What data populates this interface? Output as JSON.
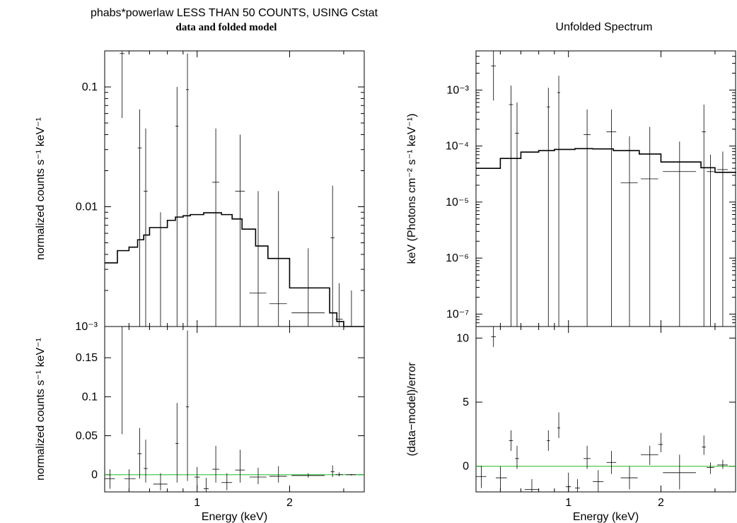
{
  "left_panel": {
    "title": "phabs*powerlaw LESS THAN 50 COUNTS, USING Cstat",
    "subtitle": "data and folded model"
  },
  "right_panel": {
    "title": "Unfolded Spectrum"
  },
  "colors": {
    "data": "#000000",
    "model": "#000000",
    "zero_line": "#22bb22"
  },
  "chart_data": [
    {
      "type": "scatter",
      "panel": "top-left",
      "xlabel": "",
      "ylabel": "normalized counts s⁻¹ keV⁻¹",
      "xscale": "log",
      "yscale": "log",
      "xlim": [
        0.5,
        3.5
      ],
      "ylim": [
        0.001,
        0.2
      ],
      "yticks": [
        {
          "v": 0.001,
          "label": "10⁻³"
        },
        {
          "v": 0.01,
          "label": "0.01"
        },
        {
          "v": 0.1,
          "label": "0.1"
        }
      ],
      "series": [
        {
          "role": "data",
          "points": [
            {
              "x": 0.52,
              "xlo": 0.5,
              "xhi": 0.54,
              "y": 0.001,
              "ylo": 0.001,
              "yhi": 0.001
            },
            {
              "x": 0.57,
              "xlo": 0.56,
              "xhi": 0.58,
              "y": 0.19,
              "ylo": 0.055,
              "yhi": 0.2
            },
            {
              "x": 0.65,
              "xlo": 0.64,
              "xhi": 0.66,
              "y": 0.031,
              "ylo": 0.001,
              "yhi": 0.065
            },
            {
              "x": 0.68,
              "xlo": 0.67,
              "xhi": 0.69,
              "y": 0.0135,
              "ylo": 0.001,
              "yhi": 0.045
            },
            {
              "x": 0.76,
              "xlo": 0.72,
              "xhi": 0.8,
              "y": 0.001,
              "ylo": 0.001,
              "yhi": 0.009
            },
            {
              "x": 0.86,
              "xlo": 0.85,
              "xhi": 0.87,
              "y": 0.047,
              "ylo": 0.001,
              "yhi": 0.1
            },
            {
              "x": 0.93,
              "xlo": 0.92,
              "xhi": 0.94,
              "y": 0.095,
              "ylo": 0.001,
              "yhi": 0.19
            },
            {
              "x": 1.15,
              "xlo": 1.12,
              "xhi": 1.18,
              "y": 0.016,
              "ylo": 0.001,
              "yhi": 0.045
            },
            {
              "x": 1.38,
              "xlo": 1.33,
              "xhi": 1.43,
              "y": 0.0135,
              "ylo": 0.001,
              "yhi": 0.04
            },
            {
              "x": 1.58,
              "xlo": 1.48,
              "xhi": 1.68,
              "y": 0.0019,
              "ylo": 0.001,
              "yhi": 0.0135
            },
            {
              "x": 1.84,
              "xlo": 1.72,
              "xhi": 1.96,
              "y": 0.00155,
              "ylo": 0.001,
              "yhi": 0.0135
            },
            {
              "x": 2.3,
              "xlo": 2.03,
              "xhi": 2.6,
              "y": 0.0013,
              "ylo": 0.001,
              "yhi": 0.0045
            },
            {
              "x": 2.76,
              "xlo": 2.72,
              "xhi": 2.8,
              "y": 0.0055,
              "ylo": 0.001,
              "yhi": 0.015
            },
            {
              "x": 2.9,
              "xlo": 2.82,
              "xhi": 2.98,
              "y": 0.00115,
              "ylo": 0.001,
              "yhi": 0.0023
            },
            {
              "x": 3.18,
              "xlo": 3.05,
              "xhi": 3.3,
              "y": 0.001,
              "ylo": 0.001,
              "yhi": 0.002
            }
          ]
        },
        {
          "role": "model",
          "step_x": [
            0.5,
            0.55,
            0.6,
            0.64,
            0.67,
            0.7,
            0.75,
            0.8,
            0.85,
            0.9,
            0.95,
            1.05,
            1.2,
            1.3,
            1.4,
            1.55,
            1.7,
            2.0,
            2.7,
            2.85,
            3.0,
            3.5
          ],
          "step_y": [
            0.0034,
            0.0043,
            0.0046,
            0.0053,
            0.0058,
            0.0067,
            0.0067,
            0.0077,
            0.0082,
            0.0084,
            0.0086,
            0.0089,
            0.0086,
            0.0079,
            0.0065,
            0.0047,
            0.0037,
            0.0021,
            0.0013,
            0.0011,
            0.001
          ]
        }
      ]
    },
    {
      "type": "scatter",
      "panel": "bottom-left",
      "xlabel": "Energy (keV)",
      "ylabel": "normalized counts s⁻¹ keV⁻¹",
      "xscale": "log",
      "yscale": "linear",
      "xlim": [
        0.5,
        3.5
      ],
      "ylim": [
        -0.022,
        0.19
      ],
      "xticks": [
        {
          "v": 1,
          "label": "1"
        },
        {
          "v": 2,
          "label": "2"
        }
      ],
      "yticks": [
        {
          "v": 0,
          "label": "0"
        },
        {
          "v": 0.05,
          "label": "0.05"
        },
        {
          "v": 0.1,
          "label": "0.1"
        },
        {
          "v": 0.15,
          "label": "0.15"
        }
      ],
      "zero_line": 0,
      "series": [
        {
          "role": "data",
          "points": [
            {
              "x": 0.52,
              "xlo": 0.5,
              "xhi": 0.54,
              "y": -0.005,
              "ylo": -0.018,
              "yhi": 0.007
            },
            {
              "x": 0.57,
              "xlo": 0.56,
              "xhi": 0.58,
              "y": 0.19,
              "ylo": 0.052,
              "yhi": 0.19
            },
            {
              "x": 0.6,
              "xlo": 0.58,
              "xhi": 0.63,
              "y": -0.005,
              "ylo": -0.018,
              "yhi": 0.007
            },
            {
              "x": 0.65,
              "xlo": 0.64,
              "xhi": 0.66,
              "y": 0.027,
              "ylo": -0.005,
              "yhi": 0.06
            },
            {
              "x": 0.68,
              "xlo": 0.67,
              "xhi": 0.69,
              "y": 0.008,
              "ylo": -0.01,
              "yhi": 0.045
            },
            {
              "x": 0.76,
              "xlo": 0.72,
              "xhi": 0.8,
              "y": -0.012,
              "ylo": -0.02,
              "yhi": 0.002
            },
            {
              "x": 0.86,
              "xlo": 0.85,
              "xhi": 0.87,
              "y": 0.04,
              "ylo": -0.01,
              "yhi": 0.092
            },
            {
              "x": 0.93,
              "xlo": 0.92,
              "xhi": 0.94,
              "y": 0.087,
              "ylo": -0.008,
              "yhi": 0.185
            },
            {
              "x": 1.0,
              "xlo": 0.98,
              "xhi": 1.02,
              "y": -0.003,
              "ylo": -0.018,
              "yhi": 0.01
            },
            {
              "x": 1.07,
              "xlo": 1.05,
              "xhi": 1.09,
              "y": -0.018,
              "ylo": -0.022,
              "yhi": -0.004
            },
            {
              "x": 1.15,
              "xlo": 1.12,
              "xhi": 1.18,
              "y": 0.007,
              "ylo": -0.01,
              "yhi": 0.037
            },
            {
              "x": 1.25,
              "xlo": 1.2,
              "xhi": 1.3,
              "y": -0.01,
              "ylo": -0.02,
              "yhi": 0.002
            },
            {
              "x": 1.38,
              "xlo": 1.33,
              "xhi": 1.43,
              "y": 0.006,
              "ylo": -0.01,
              "yhi": 0.032
            },
            {
              "x": 1.58,
              "xlo": 1.48,
              "xhi": 1.68,
              "y": -0.003,
              "ylo": -0.012,
              "yhi": 0.009
            },
            {
              "x": 1.84,
              "xlo": 1.72,
              "xhi": 1.96,
              "y": -0.002,
              "ylo": -0.01,
              "yhi": 0.011
            },
            {
              "x": 2.3,
              "xlo": 2.03,
              "xhi": 2.6,
              "y": -0.001,
              "ylo": -0.004,
              "yhi": 0.002
            },
            {
              "x": 2.76,
              "xlo": 2.72,
              "xhi": 2.8,
              "y": 0.004,
              "ylo": -0.003,
              "yhi": 0.012
            },
            {
              "x": 2.9,
              "xlo": 2.82,
              "xhi": 2.98,
              "y": 0.0,
              "ylo": -0.002,
              "yhi": 0.003
            },
            {
              "x": 3.18,
              "xlo": 3.05,
              "xhi": 3.3,
              "y": 0.0,
              "ylo": -0.001,
              "yhi": 0.001
            }
          ]
        }
      ]
    },
    {
      "type": "scatter",
      "panel": "top-right",
      "xlabel": "",
      "ylabel": "keV (Photons cm⁻² s⁻¹ keV⁻¹)",
      "xscale": "log",
      "yscale": "log",
      "xlim": [
        0.5,
        3.5
      ],
      "ylim": [
        6e-08,
        0.005
      ],
      "yticks": [
        {
          "v": 1e-07,
          "label": "10⁻⁷"
        },
        {
          "v": 1e-06,
          "label": "10⁻⁶"
        },
        {
          "v": 1e-05,
          "label": "10⁻⁵"
        },
        {
          "v": 0.0001,
          "label": "10⁻⁴"
        },
        {
          "v": 0.001,
          "label": "10⁻³"
        }
      ],
      "series": [
        {
          "role": "data",
          "points": [
            {
              "x": 0.57,
              "xlo": 0.56,
              "xhi": 0.58,
              "y": 0.0027,
              "ylo": 0.00065,
              "yhi": 0.005
            },
            {
              "x": 0.65,
              "xlo": 0.64,
              "xhi": 0.66,
              "y": 0.00055,
              "ylo": 6e-08,
              "yhi": 0.0012
            },
            {
              "x": 0.68,
              "xlo": 0.67,
              "xhi": 0.69,
              "y": 0.00017,
              "ylo": 6e-08,
              "yhi": 0.0006
            },
            {
              "x": 0.86,
              "xlo": 0.85,
              "xhi": 0.87,
              "y": 0.0005,
              "ylo": 6e-08,
              "yhi": 0.0011
            },
            {
              "x": 0.93,
              "xlo": 0.92,
              "xhi": 0.94,
              "y": 0.0009,
              "ylo": 6e-08,
              "yhi": 0.0018
            },
            {
              "x": 1.15,
              "xlo": 1.12,
              "xhi": 1.18,
              "y": 0.00016,
              "ylo": 6e-08,
              "yhi": 0.00045
            },
            {
              "x": 1.38,
              "xlo": 1.33,
              "xhi": 1.43,
              "y": 0.00018,
              "ylo": 6e-08,
              "yhi": 0.00045
            },
            {
              "x": 1.58,
              "xlo": 1.48,
              "xhi": 1.68,
              "y": 2.2e-05,
              "ylo": 6e-08,
              "yhi": 0.00015
            },
            {
              "x": 1.84,
              "xlo": 1.72,
              "xhi": 1.96,
              "y": 2.6e-05,
              "ylo": 6e-08,
              "yhi": 0.00022
            },
            {
              "x": 2.3,
              "xlo": 2.03,
              "xhi": 2.6,
              "y": 3.5e-05,
              "ylo": 6e-08,
              "yhi": 0.00012
            },
            {
              "x": 2.76,
              "xlo": 2.72,
              "xhi": 2.8,
              "y": 0.00018,
              "ylo": 6e-08,
              "yhi": 0.00055
            },
            {
              "x": 2.9,
              "xlo": 2.82,
              "xhi": 2.98,
              "y": 3.5e-05,
              "ylo": 6e-08,
              "yhi": 7e-05
            },
            {
              "x": 3.18,
              "xlo": 3.05,
              "xhi": 3.3,
              "y": 3.8e-05,
              "ylo": 6e-08,
              "yhi": 8e-05
            }
          ]
        },
        {
          "role": "model",
          "step_x": [
            0.5,
            0.6,
            0.7,
            0.8,
            0.9,
            1.05,
            1.2,
            1.4,
            1.7,
            2.0,
            2.7,
            3.0,
            3.5
          ],
          "step_y": [
            4e-05,
            6e-05,
            7.8e-05,
            8.3e-05,
            8.7e-05,
            9e-05,
            8.9e-05,
            8.3e-05,
            7.2e-05,
            5.2e-05,
            4.1e-05,
            3.4e-05,
            3.3e-05
          ]
        }
      ]
    },
    {
      "type": "scatter",
      "panel": "bottom-right",
      "xlabel": "Energy (keV)",
      "ylabel": "(data−model)/error",
      "xscale": "log",
      "yscale": "linear",
      "xlim": [
        0.5,
        3.5
      ],
      "ylim": [
        -2,
        10.9
      ],
      "xticks": [
        {
          "v": 1,
          "label": "1"
        },
        {
          "v": 2,
          "label": "2"
        }
      ],
      "yticks": [
        {
          "v": 0,
          "label": "0"
        },
        {
          "v": 5,
          "label": "5"
        },
        {
          "v": 10,
          "label": "10"
        }
      ],
      "zero_line": 0,
      "series": [
        {
          "role": "data",
          "points": [
            {
              "x": 0.52,
              "xlo": 0.5,
              "xhi": 0.54,
              "y": -0.8,
              "ylo": -1.7,
              "yhi": 0.0
            },
            {
              "x": 0.57,
              "xlo": 0.56,
              "xhi": 0.58,
              "y": 10.1,
              "ylo": 9.3,
              "yhi": 10.9
            },
            {
              "x": 0.6,
              "xlo": 0.58,
              "xhi": 0.63,
              "y": -0.9,
              "ylo": -1.8,
              "yhi": 0.0
            },
            {
              "x": 0.65,
              "xlo": 0.64,
              "xhi": 0.66,
              "y": 2.0,
              "ylo": 1.2,
              "yhi": 2.8
            },
            {
              "x": 0.68,
              "xlo": 0.67,
              "xhi": 0.69,
              "y": 0.6,
              "ylo": -0.2,
              "yhi": 1.6
            },
            {
              "x": 0.76,
              "xlo": 0.72,
              "xhi": 0.8,
              "y": -1.8,
              "ylo": -2.0,
              "yhi": -1.0
            },
            {
              "x": 0.86,
              "xlo": 0.85,
              "xhi": 0.87,
              "y": 2.0,
              "ylo": 1.2,
              "yhi": 2.8
            },
            {
              "x": 0.93,
              "xlo": 0.92,
              "xhi": 0.94,
              "y": 3.0,
              "ylo": 2.2,
              "yhi": 4.2
            },
            {
              "x": 1.0,
              "xlo": 0.98,
              "xhi": 1.02,
              "y": -1.6,
              "ylo": -2.0,
              "yhi": -0.5
            },
            {
              "x": 1.07,
              "xlo": 1.05,
              "xhi": 1.09,
              "y": -1.7,
              "ylo": -2.0,
              "yhi": -1.0
            },
            {
              "x": 1.15,
              "xlo": 1.12,
              "xhi": 1.18,
              "y": 0.6,
              "ylo": -0.2,
              "yhi": 1.6
            },
            {
              "x": 1.25,
              "xlo": 1.2,
              "xhi": 1.3,
              "y": -1.2,
              "ylo": -2.0,
              "yhi": -0.3
            },
            {
              "x": 1.38,
              "xlo": 1.33,
              "xhi": 1.43,
              "y": 0.3,
              "ylo": -0.6,
              "yhi": 1.2
            },
            {
              "x": 1.58,
              "xlo": 1.48,
              "xhi": 1.68,
              "y": -0.9,
              "ylo": -1.8,
              "yhi": 0.0
            },
            {
              "x": 1.84,
              "xlo": 1.72,
              "xhi": 1.96,
              "y": 0.9,
              "ylo": 0.1,
              "yhi": 1.6
            },
            {
              "x": 2.0,
              "xlo": 1.96,
              "xhi": 2.03,
              "y": 1.7,
              "ylo": 1.1,
              "yhi": 2.6
            },
            {
              "x": 2.3,
              "xlo": 2.03,
              "xhi": 2.6,
              "y": -0.5,
              "ylo": -1.8,
              "yhi": 0.9
            },
            {
              "x": 2.76,
              "xlo": 2.72,
              "xhi": 2.8,
              "y": 1.5,
              "ylo": 0.9,
              "yhi": 2.4
            },
            {
              "x": 2.9,
              "xlo": 2.82,
              "xhi": 2.98,
              "y": -0.1,
              "ylo": -0.6,
              "yhi": 0.3
            },
            {
              "x": 3.18,
              "xlo": 3.05,
              "xhi": 3.3,
              "y": 0.1,
              "ylo": -0.2,
              "yhi": 0.5
            }
          ]
        }
      ]
    }
  ]
}
